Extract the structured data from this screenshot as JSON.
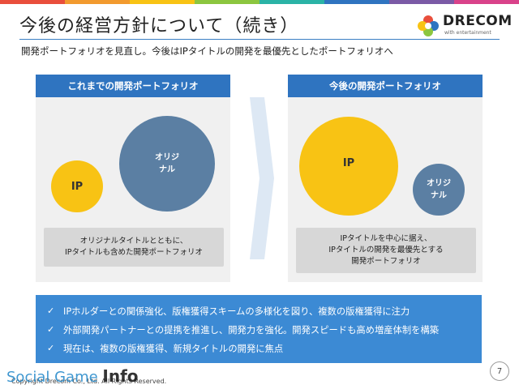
{
  "slide": {
    "title": "今後の経営方針について（続き）",
    "subtitle": "開発ポートフォリオを見直し。今後はIPタイトルの開発を最優先としたポートフォリオへ",
    "page_number": "7"
  },
  "logo": {
    "name": "DRECOM",
    "tagline": "with entertainment"
  },
  "left_panel": {
    "header": "これまでの開発ポートフォリオ",
    "ip_label": "IP",
    "original_label": "オリジナル",
    "caption_lines": [
      "オリジナルタイトルとともに、",
      "IPタイトルも含めた開発ポートフォリオ"
    ]
  },
  "right_panel": {
    "header": "今後の開発ポートフォリオ",
    "ip_label": "IP",
    "original_label": "オリジナル",
    "caption_lines": [
      "IPタイトルを中心に据え、",
      "IPタイトルの開発を最優先とする",
      "開発ポートフォリオ"
    ]
  },
  "bullets": [
    "IPホルダーとの関係強化、版権獲得スキームの多様化を図り、複数の版権獲得に注力",
    "外部開発パートナーとの提携を推進し、開発力を強化。開発スピードも高め増産体制を構築",
    "現在は、複数の版権獲得、新規タイトルの開発に焦点"
  ],
  "footer": {
    "copyright": "Copyright Drecom Co., Ltd. All Rights Reserved.",
    "watermark_prefix": "Social Game ",
    "watermark_bold": "Info"
  },
  "colors": {
    "header_blue": "#2f74c0",
    "bullet_box": "#3c8ad4",
    "ip_yellow": "#f8c314",
    "original_blue": "#5b7fa3",
    "rule_blue": "#3b7fc4"
  }
}
